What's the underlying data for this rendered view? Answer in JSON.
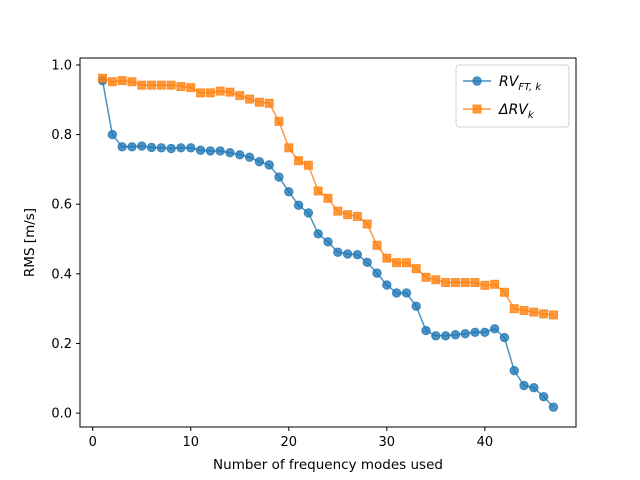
{
  "chart_data": {
    "type": "line",
    "xlabel": "Number of frequency modes used",
    "ylabel": "RMS [m/s]",
    "xlim": [
      -1.3,
      49.3
    ],
    "ylim": [
      -0.04,
      1.02
    ],
    "xticks": [
      0,
      10,
      20,
      30,
      40
    ],
    "yticks": [
      0.0,
      0.2,
      0.4,
      0.6,
      0.8,
      1.0
    ],
    "xtick_labels": [
      "0",
      "10",
      "20",
      "30",
      "40"
    ],
    "ytick_labels": [
      "0.0",
      "0.2",
      "0.4",
      "0.6",
      "0.8",
      "1.0"
    ],
    "grid": false,
    "legend_position": "top-right",
    "x": [
      1,
      2,
      3,
      4,
      5,
      6,
      7,
      8,
      9,
      10,
      11,
      12,
      13,
      14,
      15,
      16,
      17,
      18,
      19,
      20,
      21,
      22,
      23,
      24,
      25,
      26,
      27,
      28,
      29,
      30,
      31,
      32,
      33,
      34,
      35,
      36,
      37,
      38,
      39,
      40,
      41,
      42,
      43,
      44,
      45,
      46,
      47
    ],
    "series": [
      {
        "name_main": "RV",
        "name_sub": "FT, k",
        "color": "#1f77b4",
        "marker": "circle",
        "values": [
          0.955,
          0.8,
          0.765,
          0.765,
          0.767,
          0.763,
          0.762,
          0.76,
          0.762,
          0.762,
          0.755,
          0.753,
          0.753,
          0.748,
          0.742,
          0.735,
          0.722,
          0.713,
          0.678,
          0.636,
          0.597,
          0.575,
          0.515,
          0.492,
          0.462,
          0.457,
          0.455,
          0.433,
          0.402,
          0.368,
          0.345,
          0.345,
          0.307,
          0.237,
          0.222,
          0.222,
          0.225,
          0.228,
          0.232,
          0.232,
          0.242,
          0.217,
          0.122,
          0.079,
          0.073,
          0.047,
          0.017
        ]
      },
      {
        "name_main": "ΔRV",
        "name_sub": "k",
        "color": "#ff7f0e",
        "marker": "square",
        "values": [
          0.962,
          0.952,
          0.955,
          0.952,
          0.942,
          0.942,
          0.942,
          0.942,
          0.938,
          0.935,
          0.92,
          0.92,
          0.925,
          0.922,
          0.912,
          0.902,
          0.893,
          0.89,
          0.838,
          0.762,
          0.725,
          0.712,
          0.638,
          0.617,
          0.58,
          0.57,
          0.565,
          0.543,
          0.482,
          0.445,
          0.432,
          0.432,
          0.415,
          0.39,
          0.383,
          0.375,
          0.375,
          0.375,
          0.375,
          0.367,
          0.37,
          0.347,
          0.3,
          0.295,
          0.29,
          0.285,
          0.282
        ]
      }
    ]
  }
}
